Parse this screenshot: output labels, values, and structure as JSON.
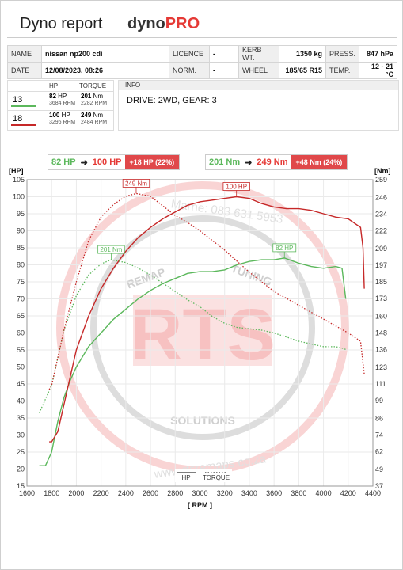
{
  "header": {
    "title": "Dyno report",
    "brand_a": "dyno",
    "brand_b": "PRO"
  },
  "meta": {
    "name_label": "NAME",
    "name_value": "nissan np200 cdi",
    "licence_label": "LICENCE",
    "licence_value": "-",
    "kerb_label": "KERB WT.",
    "kerb_value": "1350 kg",
    "press_label": "PRESS.",
    "press_value": "847 hPa",
    "date_label": "DATE",
    "date_value": "12/08/2023, 08:26",
    "norm_label": "NORM.",
    "norm_value": "-",
    "wheel_label": "WHEEL",
    "wheel_value": "185/65 R15",
    "temp_label": "TEMP.",
    "temp_value": "12 - 21 °C"
  },
  "results": {
    "hp_header": "HP",
    "torque_header": "TORQUE",
    "runs": [
      {
        "id": "13",
        "color": "#5cb85c",
        "hp": "82",
        "hp_unit": "HP",
        "hp_rpm": "3684",
        "rpm_unit": "RPM",
        "torque": "201",
        "torque_unit": "Nm",
        "torque_rpm": "2282"
      },
      {
        "id": "18",
        "color": "#c62828",
        "hp": "100",
        "hp_unit": "HP",
        "hp_rpm": "3296",
        "rpm_unit": "RPM",
        "torque": "249",
        "torque_unit": "Nm",
        "torque_rpm": "2484"
      }
    ]
  },
  "info": {
    "label": "INFO",
    "text": "DRIVE: 2WD,  GEAR: 3"
  },
  "compare": {
    "hp_before": "82 HP",
    "hp_after": "100 HP",
    "hp_delta": "+18 HP  (22%)",
    "tq_before": "201 Nm",
    "tq_after": "249 Nm",
    "tq_delta": "+48 Nm  (24%)"
  },
  "watermark": {
    "letters": "RTS",
    "top_text": "REMAP",
    "top_text2": "TUNING",
    "bottom_text": "SOLUTIONS",
    "contact": "Marne: 083 631 5953",
    "website": "www.rtsremaps.co.za",
    "colors": {
      "letters": "#f4a8a8",
      "ring": "#f7c9c9",
      "inner_ring": "#cfcfcf"
    }
  },
  "chart_data": {
    "type": "line",
    "xlabel": "[ RPM ]",
    "ylabel_left": "[HP]",
    "ylabel_right": "[Nm]",
    "xlim": [
      1600,
      4400
    ],
    "ylim_left": [
      15,
      105
    ],
    "ylim_right": [
      37,
      259
    ],
    "x_ticks": [
      1600,
      1800,
      2000,
      2200,
      2400,
      2600,
      2800,
      3000,
      3200,
      3400,
      3600,
      3800,
      4000,
      4200,
      4400
    ],
    "y_ticks_left": [
      15,
      20,
      25,
      30,
      35,
      40,
      45,
      50,
      55,
      60,
      65,
      70,
      75,
      80,
      85,
      90,
      95,
      100,
      105
    ],
    "y_ticks_right": [
      37,
      49,
      62,
      74,
      86,
      99,
      111,
      123,
      136,
      148,
      160,
      173,
      185,
      197,
      209,
      222,
      234,
      246,
      259
    ],
    "legend": [
      "HP",
      "TORQUE"
    ],
    "series": [
      {
        "run": "13",
        "metric": "HP",
        "color": "#5cb85c",
        "style": "solid",
        "x": [
          1700,
          1750,
          1800,
          1850,
          1900,
          1950,
          2000,
          2100,
          2200,
          2300,
          2400,
          2500,
          2600,
          2700,
          2800,
          2900,
          3000,
          3100,
          3200,
          3300,
          3400,
          3500,
          3600,
          3684,
          3800,
          3900,
          4000,
          4100,
          4150,
          4180
        ],
        "y": [
          21,
          21,
          25,
          34,
          41,
          46,
          50,
          56,
          60,
          64,
          67,
          70,
          72.5,
          74.5,
          76,
          77.5,
          78,
          78,
          78.5,
          80,
          81,
          81.5,
          81.5,
          82,
          80.5,
          79.5,
          79,
          79.5,
          79,
          70
        ]
      },
      {
        "run": "18",
        "metric": "HP",
        "color": "#c62828",
        "style": "solid",
        "x": [
          1780,
          1800,
          1850,
          1900,
          1950,
          2000,
          2100,
          2200,
          2300,
          2400,
          2500,
          2600,
          2700,
          2800,
          2900,
          3000,
          3100,
          3200,
          3296,
          3400,
          3500,
          3600,
          3700,
          3800,
          3900,
          4000,
          4100,
          4200,
          4300,
          4320,
          4330
        ],
        "y": [
          28,
          28,
          31,
          39,
          47,
          55,
          65,
          73,
          79,
          84,
          88,
          91,
          93.5,
          95.5,
          97.5,
          98.5,
          99,
          99.5,
          100,
          99.5,
          98,
          97,
          96.5,
          96.5,
          96,
          95,
          94,
          93.5,
          91,
          85,
          73
        ]
      },
      {
        "run": "13",
        "metric": "TORQUE",
        "color": "#5cb85c",
        "style": "dotted",
        "x": [
          1700,
          1800,
          1900,
          2000,
          2100,
          2200,
          2282,
          2400,
          2500,
          2600,
          2700,
          2800,
          2900,
          3000,
          3100,
          3200,
          3300,
          3400,
          3500,
          3600,
          3700,
          3800,
          3900,
          4000,
          4100,
          4150,
          4180
        ],
        "y": [
          90,
          110,
          150,
          175,
          190,
          198,
          201,
          199,
          195,
          190,
          184,
          178,
          172,
          167,
          160,
          155,
          152,
          151,
          150,
          148,
          145,
          142,
          140,
          138,
          138,
          137,
          136
        ]
      },
      {
        "run": "18",
        "metric": "TORQUE",
        "color": "#c62828",
        "style": "dotted",
        "x": [
          1780,
          1800,
          1900,
          2000,
          2100,
          2200,
          2300,
          2400,
          2484,
          2600,
          2700,
          2800,
          2900,
          3000,
          3100,
          3200,
          3300,
          3400,
          3500,
          3600,
          3700,
          3800,
          3900,
          4000,
          4100,
          4200,
          4300,
          4330
        ],
        "y": [
          107,
          110,
          150,
          185,
          215,
          232,
          241,
          247,
          249,
          247,
          240,
          233,
          228,
          222,
          215,
          208,
          200,
          192,
          185,
          178,
          173,
          168,
          163,
          158,
          153,
          148,
          142,
          118
        ]
      }
    ],
    "annotations": [
      {
        "text": "249 Nm",
        "x": 2484,
        "y": 249,
        "axis": "right",
        "color": "#c62828"
      },
      {
        "text": "100 HP",
        "x": 3296,
        "y": 100,
        "axis": "left",
        "color": "#c62828"
      },
      {
        "text": "201 Nm",
        "x": 2282,
        "y": 201,
        "axis": "right",
        "color": "#5cb85c"
      },
      {
        "text": "82 HP",
        "x": 3684,
        "y": 82,
        "axis": "left",
        "color": "#5cb85c"
      }
    ]
  }
}
